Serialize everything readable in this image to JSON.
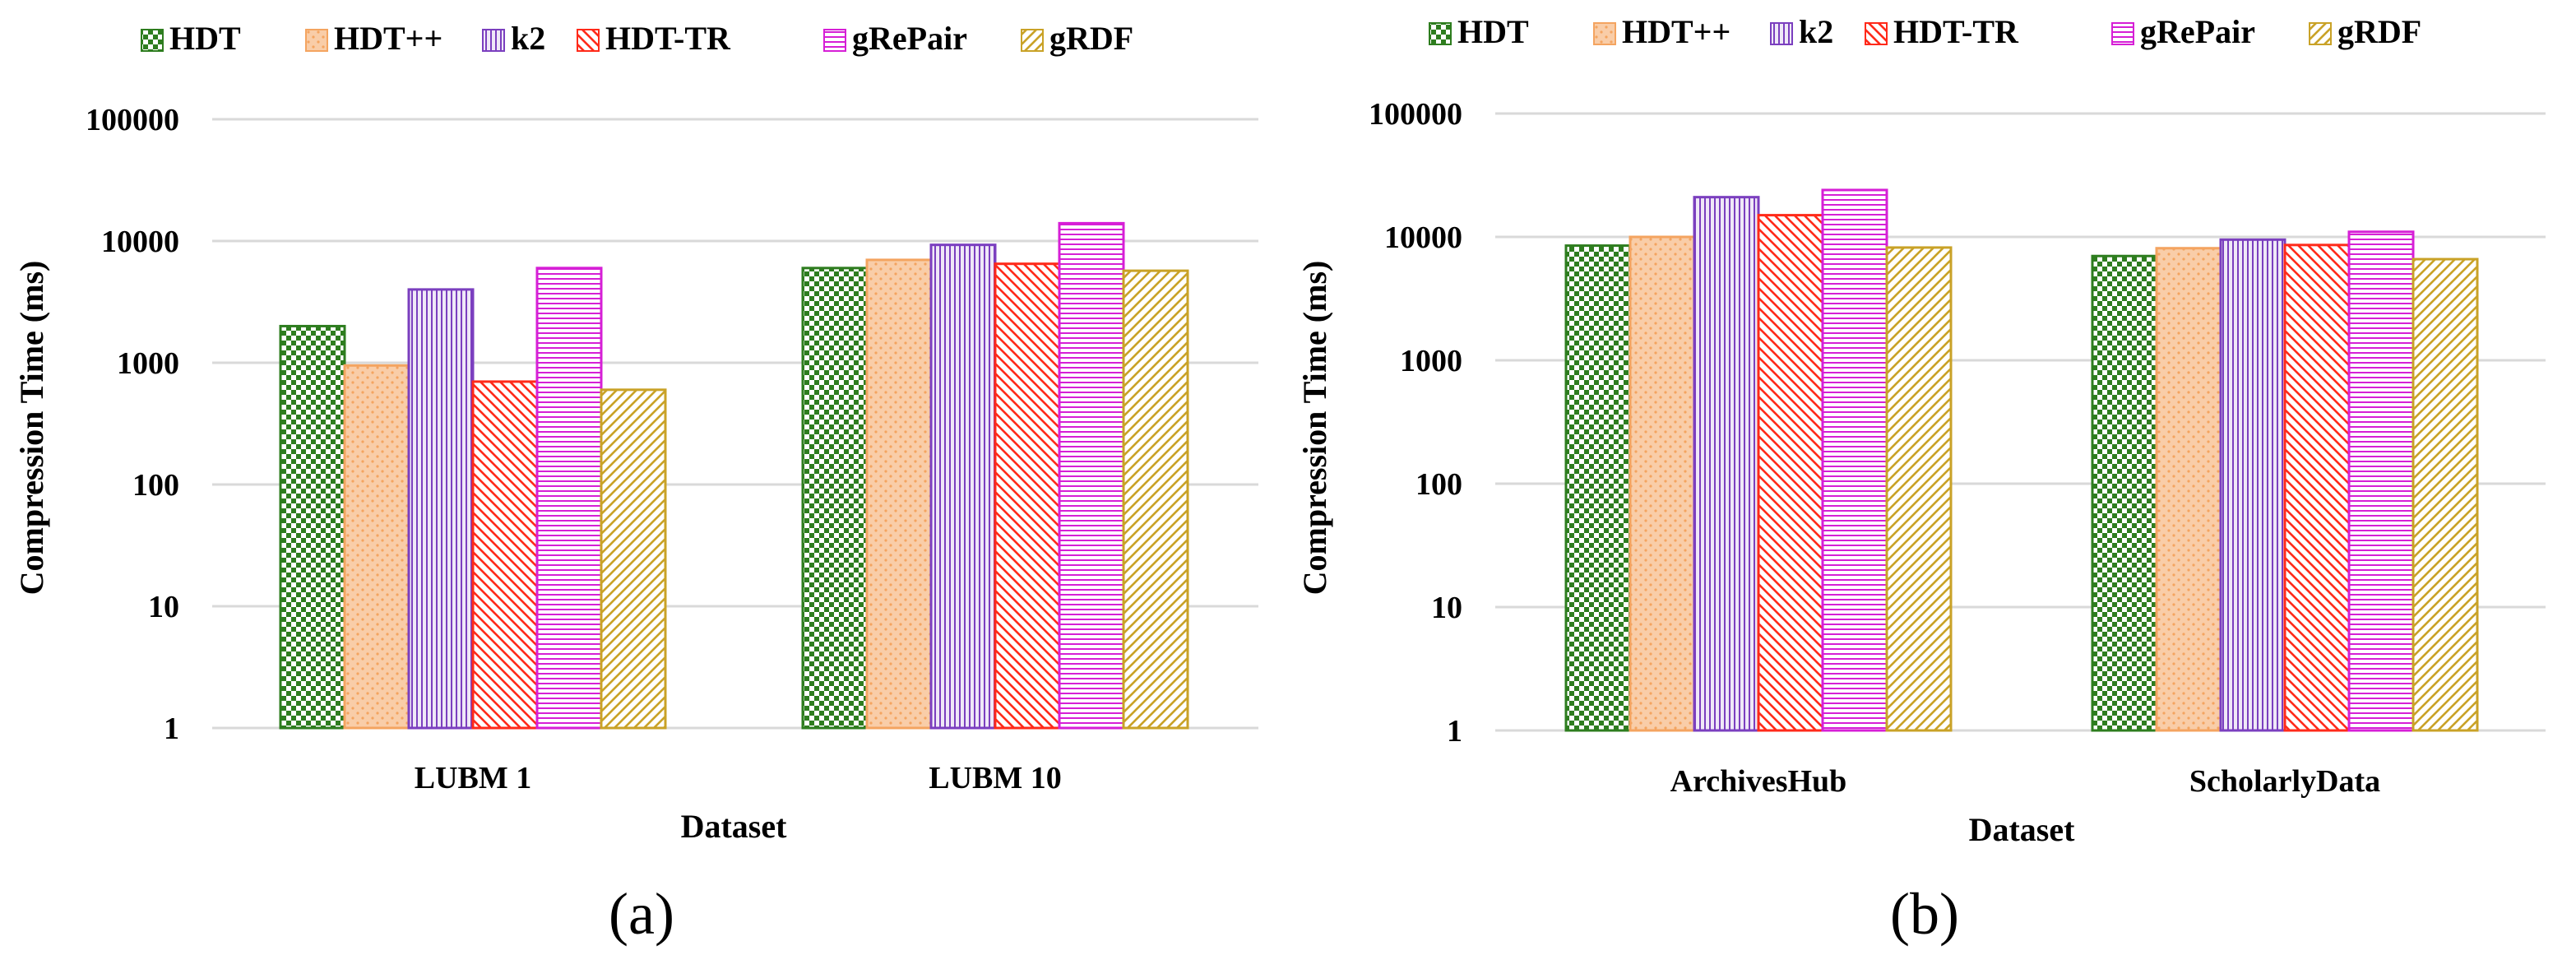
{
  "legend": [
    "HDT",
    "HDT++",
    "k2",
    "HDT-TR",
    "gRePair",
    "gRDF"
  ],
  "series_styles": [
    {
      "name": "HDT",
      "color": "#2e7d1f",
      "pattern": "checker"
    },
    {
      "name": "HDT++",
      "color": "#f4a460",
      "pattern": "dots"
    },
    {
      "name": "k2",
      "color": "#7b3fbf",
      "pattern": "vertical"
    },
    {
      "name": "HDT-TR",
      "color": "#ff2a1a",
      "pattern": "diagonal-down"
    },
    {
      "name": "gRePair",
      "color": "#d61fd6",
      "pattern": "horizontal"
    },
    {
      "name": "gRDF",
      "color": "#c9a227",
      "pattern": "diagonal-up"
    }
  ],
  "chart_data": [
    {
      "type": "bar",
      "caption": "(a)",
      "title": "",
      "xlabel": "Dataset",
      "ylabel": "Compression Time (ms)",
      "yscale": "log",
      "ylim": [
        1,
        100000
      ],
      "yticks": [
        "1",
        "10",
        "100",
        "1000",
        "10000",
        "100000"
      ],
      "categories": [
        "LUBM 1",
        "LUBM 10"
      ],
      "series": [
        {
          "name": "HDT",
          "values": [
            2000,
            6000
          ]
        },
        {
          "name": "HDT++",
          "values": [
            950,
            7000
          ]
        },
        {
          "name": "k2",
          "values": [
            4000,
            9300
          ]
        },
        {
          "name": "HDT-TR",
          "values": [
            700,
            6500
          ]
        },
        {
          "name": "gRePair",
          "values": [
            6000,
            14000
          ]
        },
        {
          "name": "gRDF",
          "values": [
            600,
            5700
          ]
        }
      ]
    },
    {
      "type": "bar",
      "caption": "(b)",
      "title": "",
      "xlabel": "Dataset",
      "ylabel": "Compression Time (ms)",
      "yscale": "log",
      "ylim": [
        1,
        100000
      ],
      "yticks": [
        "1",
        "10",
        "100",
        "1000",
        "10000",
        "100000"
      ],
      "categories": [
        "ArchivesHub",
        "ScholarlyData"
      ],
      "series": [
        {
          "name": "HDT",
          "values": [
            8500,
            7000
          ]
        },
        {
          "name": "HDT++",
          "values": [
            10000,
            8100
          ]
        },
        {
          "name": "k2",
          "values": [
            21000,
            9500
          ]
        },
        {
          "name": "HDT-TR",
          "values": [
            15000,
            8600
          ]
        },
        {
          "name": "gRePair",
          "values": [
            24000,
            11000
          ]
        },
        {
          "name": "gRDF",
          "values": [
            8200,
            6600
          ]
        }
      ]
    }
  ]
}
